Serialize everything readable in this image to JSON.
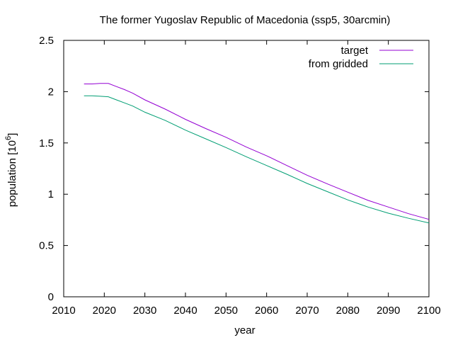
{
  "chart_data": {
    "type": "line",
    "title": "The former Yugoslav Republic of Macedonia (ssp5, 30arcmin)",
    "xlabel": "year",
    "ylabel": "population [10",
    "ylabel_sup": "6",
    "ylabel_close": "]",
    "xlim": [
      2010,
      2100
    ],
    "ylim": [
      0,
      2.5
    ],
    "xticks": [
      2010,
      2020,
      2030,
      2040,
      2050,
      2060,
      2070,
      2080,
      2090,
      2100
    ],
    "xtick_labels": [
      "2010",
      "2020",
      "2030",
      "2040",
      "2050",
      "2060",
      "2070",
      "2080",
      "2090",
      "2100"
    ],
    "yticks": [
      0,
      0.5,
      1,
      1.5,
      2,
      2.5
    ],
    "ytick_labels": [
      "0",
      "0.5",
      "1",
      "1.5",
      "2",
      "2.5"
    ],
    "grid": false,
    "legend_position": "top-right",
    "series": [
      {
        "name": "target",
        "color": "#9400d3",
        "x": [
          2015,
          2017,
          2019,
          2021,
          2023,
          2025,
          2027,
          2030,
          2035,
          2040,
          2045,
          2050,
          2055,
          2060,
          2065,
          2070,
          2075,
          2080,
          2085,
          2090,
          2095,
          2100
        ],
        "y": [
          2.075,
          2.075,
          2.08,
          2.08,
          2.05,
          2.02,
          1.985,
          1.92,
          1.83,
          1.73,
          1.64,
          1.555,
          1.46,
          1.375,
          1.28,
          1.185,
          1.1,
          1.02,
          0.94,
          0.875,
          0.81,
          0.755
        ]
      },
      {
        "name": "from gridded",
        "color": "#009e73",
        "x": [
          2015,
          2017,
          2019,
          2021,
          2023,
          2025,
          2027,
          2030,
          2035,
          2040,
          2045,
          2050,
          2055,
          2060,
          2065,
          2070,
          2075,
          2080,
          2085,
          2090,
          2095,
          2100
        ],
        "y": [
          1.96,
          1.96,
          1.955,
          1.95,
          1.92,
          1.89,
          1.86,
          1.8,
          1.72,
          1.625,
          1.54,
          1.455,
          1.365,
          1.28,
          1.195,
          1.105,
          1.025,
          0.945,
          0.875,
          0.815,
          0.765,
          0.72
        ]
      }
    ]
  }
}
